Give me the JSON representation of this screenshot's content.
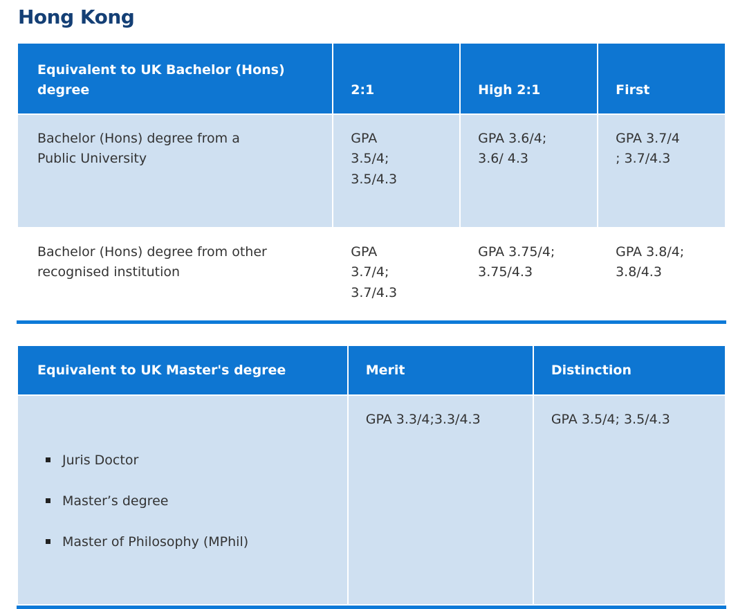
{
  "page_title": "Hong Kong",
  "colors": {
    "header_blue": "#0e76d2",
    "row_light_blue": "#cfe0f1",
    "border_blue": "#0e7ad8",
    "title_navy": "#143f75",
    "body_text": "#333333"
  },
  "bachelor_table": {
    "headers": [
      "Equivalent to UK Bachelor (Hons) degree",
      "2:1",
      "High 2:1",
      "First"
    ],
    "rows": [
      {
        "qualification": "Bachelor (Hons) degree from a\nPublic University",
        "two_one": "GPA\n3.5/4;\n3.5/4.3",
        "high_two_one": "GPA 3.6/4;\n3.6/ 4.3",
        "first": "GPA 3.7/4\n; 3.7/4.3"
      },
      {
        "qualification": "Bachelor (Hons) degree from other\nrecognised institution",
        "two_one": "GPA\n3.7/4;\n3.7/4.3",
        "high_two_one": "GPA 3.75/4;\n3.75/4.3",
        "first": "GPA 3.8/4;\n3.8/4.3"
      }
    ]
  },
  "master_table": {
    "headers": [
      "Equivalent to UK Master's degree",
      "Merit",
      "Distinction"
    ],
    "row": {
      "qualifications": [
        "Juris Doctor",
        "Master’s degree",
        "Master of Philosophy (MPhil)"
      ],
      "merit": "GPA 3.3/4;3.3/4.3",
      "distinction": "GPA 3.5/4; 3.5/4.3"
    }
  }
}
